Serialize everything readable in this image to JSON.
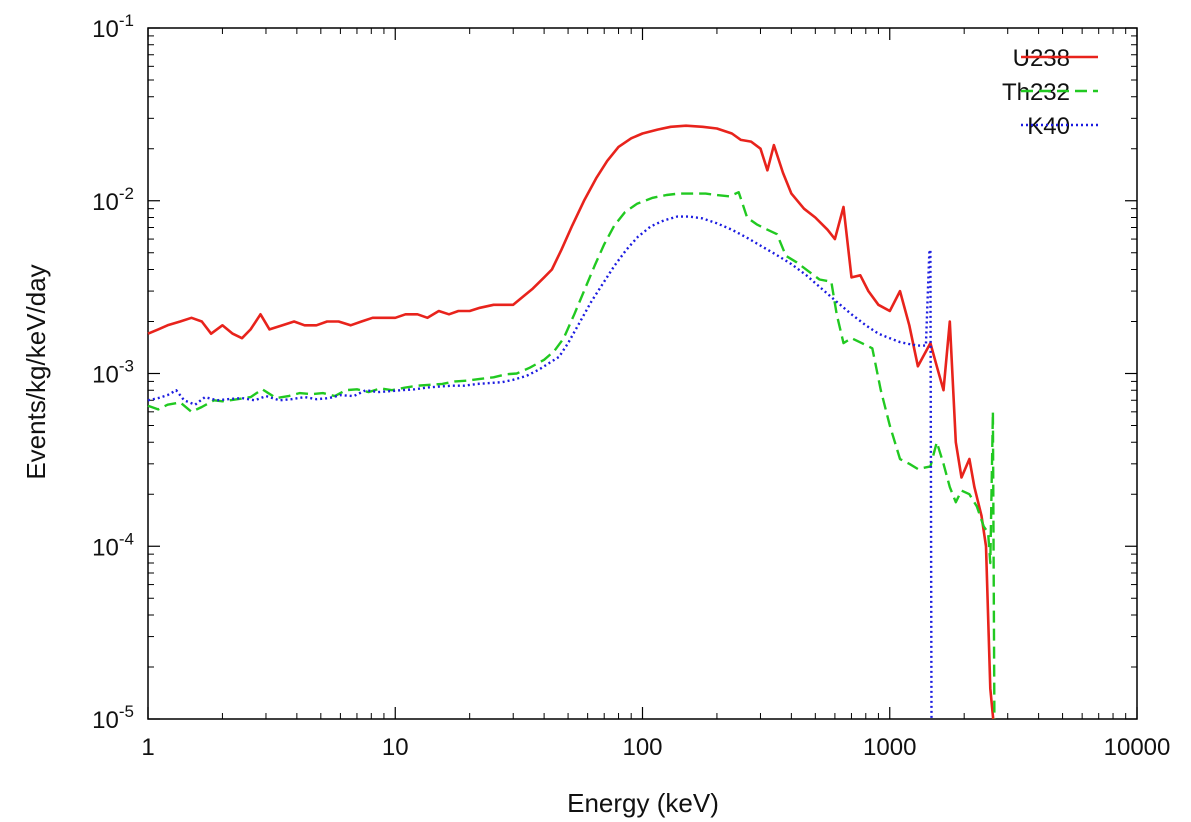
{
  "chart_data": {
    "type": "line",
    "title": "",
    "xlabel": "Energy (keV)",
    "ylabel": "Events/kg/keV/day",
    "xscale": "log",
    "yscale": "log",
    "xlim": [
      1,
      10000
    ],
    "ylim": [
      1e-05,
      0.1
    ],
    "grid": false,
    "legend_position": "top-right",
    "x_ticks": [
      {
        "value": 1,
        "label": "1"
      },
      {
        "value": 10,
        "label": "10"
      },
      {
        "value": 100,
        "label": "100"
      },
      {
        "value": 1000,
        "label": "1000"
      },
      {
        "value": 10000,
        "label": "10000"
      }
    ],
    "y_ticks": [
      {
        "value": 0.1,
        "base": "10",
        "exp": "-1"
      },
      {
        "value": 0.01,
        "base": "10",
        "exp": "-2"
      },
      {
        "value": 0.001,
        "base": "10",
        "exp": "-3"
      },
      {
        "value": 0.0001,
        "base": "10",
        "exp": "-4"
      },
      {
        "value": 1e-05,
        "base": "10",
        "exp": "-5"
      }
    ],
    "series": [
      {
        "name": "U238",
        "color": "#e8231c",
        "dash": "solid",
        "points": [
          [
            1.0,
            0.0017
          ],
          [
            1.1,
            0.0018
          ],
          [
            1.2,
            0.0019
          ],
          [
            1.35,
            0.002
          ],
          [
            1.5,
            0.0021
          ],
          [
            1.65,
            0.002
          ],
          [
            1.8,
            0.0017
          ],
          [
            2.0,
            0.0019
          ],
          [
            2.2,
            0.0017
          ],
          [
            2.4,
            0.0016
          ],
          [
            2.6,
            0.0018
          ],
          [
            2.85,
            0.0022
          ],
          [
            3.1,
            0.0018
          ],
          [
            3.5,
            0.0019
          ],
          [
            3.9,
            0.002
          ],
          [
            4.3,
            0.0019
          ],
          [
            4.8,
            0.0019
          ],
          [
            5.3,
            0.002
          ],
          [
            5.9,
            0.002
          ],
          [
            6.6,
            0.0019
          ],
          [
            7.3,
            0.002
          ],
          [
            8.1,
            0.0021
          ],
          [
            9.0,
            0.0021
          ],
          [
            10.0,
            0.0021
          ],
          [
            11.0,
            0.0022
          ],
          [
            12.3,
            0.0022
          ],
          [
            13.5,
            0.0021
          ],
          [
            15.0,
            0.0023
          ],
          [
            16.5,
            0.0022
          ],
          [
            18.0,
            0.0023
          ],
          [
            20.0,
            0.0023
          ],
          [
            22.0,
            0.0024
          ],
          [
            25.0,
            0.0025
          ],
          [
            28.0,
            0.0025
          ],
          [
            30.0,
            0.0025
          ],
          [
            33.0,
            0.0028
          ],
          [
            36.0,
            0.0031
          ],
          [
            40.0,
            0.0036
          ],
          [
            43.0,
            0.004
          ],
          [
            47.0,
            0.0052
          ],
          [
            52.0,
            0.0072
          ],
          [
            58.0,
            0.01
          ],
          [
            65.0,
            0.0135
          ],
          [
            72.0,
            0.017
          ],
          [
            80.0,
            0.0205
          ],
          [
            90.0,
            0.023
          ],
          [
            100.0,
            0.0245
          ],
          [
            115.0,
            0.0258
          ],
          [
            130.0,
            0.0268
          ],
          [
            150.0,
            0.0272
          ],
          [
            175.0,
            0.0268
          ],
          [
            200.0,
            0.0262
          ],
          [
            230.0,
            0.0245
          ],
          [
            250.0,
            0.0225
          ],
          [
            275.0,
            0.022
          ],
          [
            300.0,
            0.02
          ],
          [
            320.0,
            0.015
          ],
          [
            340.0,
            0.021
          ],
          [
            370.0,
            0.0145
          ],
          [
            400.0,
            0.011
          ],
          [
            450.0,
            0.009
          ],
          [
            500.0,
            0.008
          ],
          [
            560.0,
            0.0068
          ],
          [
            600.0,
            0.006
          ],
          [
            650.0,
            0.0092
          ],
          [
            700.0,
            0.0036
          ],
          [
            760.0,
            0.0037
          ],
          [
            820.0,
            0.003
          ],
          [
            900.0,
            0.0025
          ],
          [
            1000.0,
            0.0023
          ],
          [
            1100.0,
            0.003
          ],
          [
            1200.0,
            0.0019
          ],
          [
            1300.0,
            0.0011
          ],
          [
            1460.0,
            0.0015
          ],
          [
            1550.0,
            0.0011
          ],
          [
            1650.0,
            0.0008
          ],
          [
            1750.0,
            0.002
          ],
          [
            1850.0,
            0.0004
          ],
          [
            1950.0,
            0.00025
          ],
          [
            2100.0,
            0.00032
          ],
          [
            2200.0,
            0.00022
          ],
          [
            2350.0,
            0.00015
          ],
          [
            2450.0,
            0.0001
          ],
          [
            2550.0,
            1.5e-05
          ],
          [
            2620.0,
            8e-06
          ]
        ]
      },
      {
        "name": "Th232",
        "color": "#21c921",
        "dash": "dashed",
        "points": [
          [
            1.0,
            0.00065
          ],
          [
            1.1,
            0.00062
          ],
          [
            1.2,
            0.00066
          ],
          [
            1.35,
            0.00068
          ],
          [
            1.5,
            0.0006
          ],
          [
            1.65,
            0.00064
          ],
          [
            1.85,
            0.0007
          ],
          [
            2.0,
            0.00069
          ],
          [
            2.3,
            0.00071
          ],
          [
            2.6,
            0.00073
          ],
          [
            2.9,
            0.00081
          ],
          [
            3.3,
            0.00072
          ],
          [
            3.7,
            0.00074
          ],
          [
            4.1,
            0.00077
          ],
          [
            4.6,
            0.00076
          ],
          [
            5.1,
            0.00077
          ],
          [
            5.7,
            0.00074
          ],
          [
            6.3,
            0.0008
          ],
          [
            7.0,
            0.00081
          ],
          [
            7.8,
            0.00078
          ],
          [
            8.7,
            0.00082
          ],
          [
            9.7,
            0.0008
          ],
          [
            11.0,
            0.00083
          ],
          [
            12.3,
            0.00085
          ],
          [
            13.8,
            0.00086
          ],
          [
            15.5,
            0.00087
          ],
          [
            17.5,
            0.0009
          ],
          [
            19.5,
            0.00091
          ],
          [
            22.0,
            0.00093
          ],
          [
            25.0,
            0.00095
          ],
          [
            28.0,
            0.00099
          ],
          [
            31.0,
            0.001
          ],
          [
            35.0,
            0.00108
          ],
          [
            40.0,
            0.0012
          ],
          [
            44.0,
            0.00135
          ],
          [
            48.0,
            0.0016
          ],
          [
            53.0,
            0.0022
          ],
          [
            58.0,
            0.003
          ],
          [
            64.0,
            0.0042
          ],
          [
            70.0,
            0.0056
          ],
          [
            77.0,
            0.0072
          ],
          [
            85.0,
            0.0086
          ],
          [
            95.0,
            0.0096
          ],
          [
            110.0,
            0.0104
          ],
          [
            125.0,
            0.0108
          ],
          [
            140.0,
            0.011
          ],
          [
            160.0,
            0.011
          ],
          [
            180.0,
            0.011
          ],
          [
            200.0,
            0.0108
          ],
          [
            225.0,
            0.0106
          ],
          [
            245.0,
            0.0112
          ],
          [
            265.0,
            0.008
          ],
          [
            290.0,
            0.0073
          ],
          [
            320.0,
            0.0068
          ],
          [
            350.0,
            0.0064
          ],
          [
            380.0,
            0.0048
          ],
          [
            420.0,
            0.0044
          ],
          [
            470.0,
            0.0039
          ],
          [
            520.0,
            0.0035
          ],
          [
            580.0,
            0.0034
          ],
          [
            610.0,
            0.0022
          ],
          [
            650.0,
            0.0015
          ],
          [
            700.0,
            0.0016
          ],
          [
            770.0,
            0.0015
          ],
          [
            850.0,
            0.0014
          ],
          [
            920.0,
            0.0008
          ],
          [
            1000.0,
            0.0005
          ],
          [
            1100.0,
            0.00032
          ],
          [
            1200.0,
            0.0003
          ],
          [
            1300.0,
            0.00028
          ],
          [
            1460.0,
            0.00029
          ],
          [
            1550.0,
            0.0004
          ],
          [
            1650.0,
            0.0003
          ],
          [
            1750.0,
            0.00022
          ],
          [
            1850.0,
            0.00018
          ],
          [
            1950.0,
            0.00021
          ],
          [
            2100.0,
            0.0002
          ],
          [
            2250.0,
            0.00017
          ],
          [
            2400.0,
            0.00013
          ],
          [
            2500.0,
            0.00012
          ],
          [
            2550.0,
            8e-05
          ],
          [
            2614.0,
            0.0006
          ],
          [
            2650.0,
            1e-05
          ]
        ]
      },
      {
        "name": "K40",
        "color": "#1c1ce0",
        "dash": "dotted",
        "points": [
          [
            1.0,
            0.0007
          ],
          [
            1.1,
            0.00072
          ],
          [
            1.2,
            0.00075
          ],
          [
            1.3,
            0.0008
          ],
          [
            1.4,
            0.0007
          ],
          [
            1.55,
            0.00066
          ],
          [
            1.7,
            0.00073
          ],
          [
            1.9,
            0.0007
          ],
          [
            2.1,
            0.00071
          ],
          [
            2.4,
            0.00072
          ],
          [
            2.7,
            0.0007
          ],
          [
            3.0,
            0.00074
          ],
          [
            3.4,
            0.0007
          ],
          [
            3.8,
            0.00071
          ],
          [
            4.3,
            0.00073
          ],
          [
            4.8,
            0.00071
          ],
          [
            5.4,
            0.00072
          ],
          [
            6.0,
            0.00075
          ],
          [
            6.8,
            0.00074
          ],
          [
            7.6,
            0.0008
          ],
          [
            8.5,
            0.00078
          ],
          [
            9.5,
            0.00079
          ],
          [
            10.6,
            0.0008
          ],
          [
            12.0,
            0.00081
          ],
          [
            13.5,
            0.00083
          ],
          [
            15.0,
            0.00084
          ],
          [
            17.0,
            0.00085
          ],
          [
            19.0,
            0.00085
          ],
          [
            21.5,
            0.00087
          ],
          [
            24.0,
            0.00088
          ],
          [
            27.0,
            0.00089
          ],
          [
            30.0,
            0.00092
          ],
          [
            34.0,
            0.00097
          ],
          [
            38.0,
            0.00105
          ],
          [
            42.0,
            0.00115
          ],
          [
            46.0,
            0.00125
          ],
          [
            50.0,
            0.0015
          ],
          [
            56.0,
            0.002
          ],
          [
            62.0,
            0.0026
          ],
          [
            69.0,
            0.0033
          ],
          [
            77.0,
            0.0042
          ],
          [
            86.0,
            0.0052
          ],
          [
            96.0,
            0.0062
          ],
          [
            108.0,
            0.0071
          ],
          [
            122.0,
            0.0077
          ],
          [
            138.0,
            0.0081
          ],
          [
            155.0,
            0.0081
          ],
          [
            175.0,
            0.0079
          ],
          [
            200.0,
            0.0074
          ],
          [
            230.0,
            0.0068
          ],
          [
            265.0,
            0.0061
          ],
          [
            300.0,
            0.0055
          ],
          [
            345.0,
            0.0049
          ],
          [
            400.0,
            0.0043
          ],
          [
            460.0,
            0.0037
          ],
          [
            530.0,
            0.0031
          ],
          [
            610.0,
            0.0026
          ],
          [
            700.0,
            0.0022
          ],
          [
            800.0,
            0.0019
          ],
          [
            900.0,
            0.0017
          ],
          [
            1000.0,
            0.0016
          ],
          [
            1100.0,
            0.00152
          ],
          [
            1200.0,
            0.00148
          ],
          [
            1300.0,
            0.00145
          ],
          [
            1400.0,
            0.00145
          ],
          [
            1445.0,
            0.005
          ],
          [
            1460.0,
            0.0052
          ],
          [
            1475.0,
            9e-06
          ],
          [
            1490.0,
            8e-06
          ]
        ]
      }
    ]
  }
}
